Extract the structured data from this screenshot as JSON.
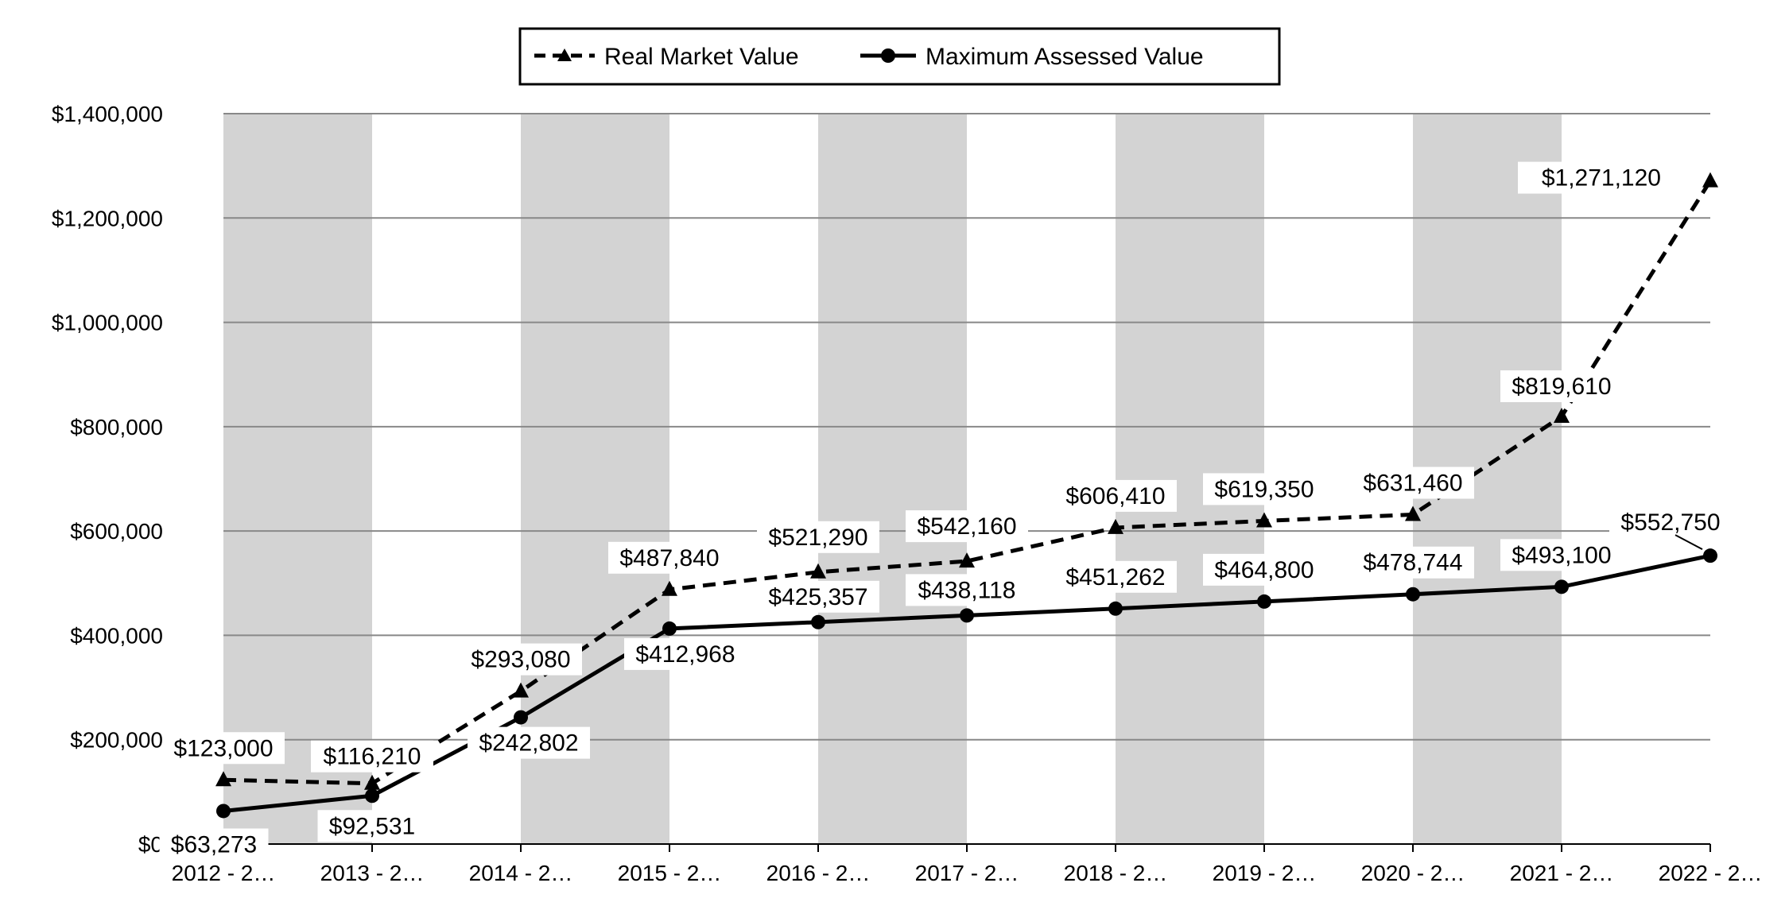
{
  "chart_data": {
    "type": "line",
    "categories": [
      "2012 - 2…",
      "2013 - 2…",
      "2014 - 2…",
      "2015 - 2…",
      "2016 - 2…",
      "2017 - 2…",
      "2018 - 2…",
      "2019 - 2…",
      "2020 - 2…",
      "2021 - 2…",
      "2022 - 2…"
    ],
    "series": [
      {
        "name": "Real Market Value",
        "style": "dashed-triangle",
        "values": [
          123000,
          116210,
          293080,
          487840,
          521290,
          542160,
          606410,
          619350,
          631460,
          819610,
          1271120
        ],
        "labels": [
          "$123,000",
          "$116,210",
          "$293,080",
          "$487,840",
          "$521,290",
          "$542,160",
          "$606,410",
          "$619,350",
          "$631,460",
          "$819,610",
          "$1,271,120"
        ]
      },
      {
        "name": "Maximum Assessed Value",
        "style": "solid-circle",
        "values": [
          63273,
          92531,
          242802,
          412968,
          425357,
          438118,
          451262,
          464800,
          478744,
          493100,
          552750
        ],
        "labels": [
          "$63,273",
          "$92,531",
          "$242,802",
          "$412,968",
          "$425,357",
          "$438,118",
          "$451,262",
          "$464,800",
          "$478,744",
          "$493,100",
          "$552,750"
        ]
      }
    ],
    "yticks": [
      "$0",
      "$200,000",
      "$400,000",
      "$600,000",
      "$800,000",
      "$1,000,000",
      "$1,200,000",
      "$1,400,000"
    ],
    "ylim": [
      0,
      1400000
    ],
    "grid": true,
    "legend_position": "top-center",
    "colors": {
      "line": "#000000",
      "band": "#d3d3d3",
      "grid": "#888888"
    }
  }
}
